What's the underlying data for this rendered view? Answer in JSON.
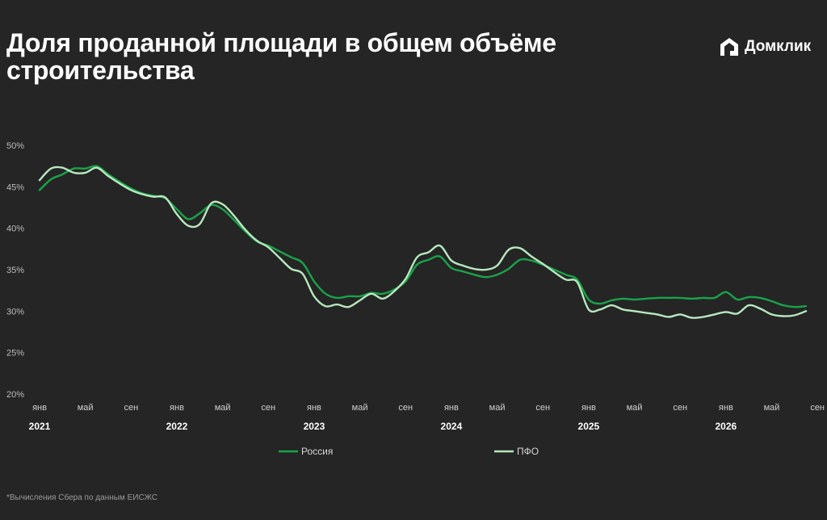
{
  "title": "Доля проданной площади в общем объёме строительства",
  "brand": {
    "name": "Домклик",
    "icon": "domclick-house-icon"
  },
  "footnote": "*Вычисления Сбера по данным ЕИСЖС",
  "colors": {
    "background": "#252525",
    "russia": "#1aa34a",
    "pfo": "#b8e8bf"
  },
  "chart_data": {
    "type": "line",
    "title": "Доля проданной площади в общем объёме строительства",
    "xlabel": "",
    "ylabel": "",
    "ylim": [
      20,
      50
    ],
    "yticks": [
      "50%",
      "45%",
      "40%",
      "35%",
      "30%",
      "25%",
      "20%"
    ],
    "xtick_labels": [
      "янв",
      "май",
      "сен",
      "янв",
      "май",
      "сен",
      "янв",
      "май",
      "сен",
      "янв",
      "май",
      "сен",
      "янв",
      "май",
      "сен",
      "янв",
      "май",
      "сен"
    ],
    "years": [
      "2021",
      "2022",
      "2023",
      "2024",
      "2025",
      "2026"
    ],
    "legend_position": "bottom",
    "grid": false,
    "x_unit": "months since Jan 2021",
    "series": [
      {
        "name": "Россия",
        "x": [
          0,
          1,
          2,
          3,
          4,
          5,
          6,
          7,
          8,
          9,
          10,
          11,
          12,
          13,
          14,
          15,
          16,
          17,
          18,
          19,
          20,
          21,
          22,
          23,
          24,
          25,
          26,
          27,
          28,
          29,
          30,
          31,
          32,
          33,
          34,
          35,
          36,
          37,
          38,
          39,
          40,
          41,
          42,
          43,
          44,
          45,
          46,
          47,
          48,
          49,
          50,
          51,
          52,
          53,
          54,
          55,
          56,
          57,
          58,
          59,
          60,
          61,
          62,
          63,
          64,
          65,
          66,
          67
        ],
        "values": [
          44.6,
          45.9,
          46.5,
          47.2,
          47.2,
          47.5,
          46.5,
          45.6,
          44.8,
          44.2,
          43.9,
          43.6,
          42.3,
          41.1,
          41.8,
          42.8,
          42.3,
          41.0,
          39.6,
          38.4,
          37.9,
          37.2,
          36.5,
          35.8,
          33.6,
          32.1,
          31.6,
          31.8,
          31.8,
          32.2,
          32.1,
          32.6,
          33.6,
          35.6,
          36.2,
          36.6,
          35.2,
          34.8,
          34.4,
          34.1,
          34.4,
          35.1,
          36.2,
          36.1,
          35.6,
          35.0,
          34.4,
          33.8,
          31.4,
          30.9,
          31.3,
          31.5,
          31.4,
          31.5,
          31.6,
          31.6,
          31.6,
          31.5,
          31.6,
          31.6,
          32.3,
          31.4,
          31.7,
          31.6,
          31.2,
          30.7,
          30.5,
          30.6
        ]
      },
      {
        "name": "ПФО",
        "x": [
          0,
          1,
          2,
          3,
          4,
          5,
          6,
          7,
          8,
          9,
          10,
          11,
          12,
          13,
          14,
          15,
          16,
          17,
          18,
          19,
          20,
          21,
          22,
          23,
          24,
          25,
          26,
          27,
          28,
          29,
          30,
          31,
          32,
          33,
          34,
          35,
          36,
          37,
          38,
          39,
          40,
          41,
          42,
          43,
          44,
          45,
          46,
          47,
          48,
          49,
          50,
          51,
          52,
          53,
          54,
          55,
          56,
          57,
          58,
          59,
          60,
          61,
          62,
          63,
          64,
          65,
          66,
          67
        ],
        "values": [
          45.8,
          47.2,
          47.3,
          46.7,
          46.7,
          47.3,
          46.3,
          45.4,
          44.6,
          44.1,
          43.8,
          43.7,
          41.7,
          40.3,
          40.5,
          43.0,
          42.9,
          41.5,
          39.8,
          38.5,
          37.7,
          36.4,
          35.1,
          34.5,
          31.8,
          30.6,
          30.8,
          30.5,
          31.3,
          32.1,
          31.5,
          32.4,
          33.9,
          36.5,
          37.1,
          37.9,
          36.1,
          35.5,
          35.1,
          35.0,
          35.5,
          37.4,
          37.6,
          36.6,
          35.7,
          34.7,
          33.8,
          33.5,
          30.2,
          30.2,
          30.7,
          30.2,
          30.0,
          29.8,
          29.6,
          29.3,
          29.6,
          29.2,
          29.3,
          29.6,
          29.9,
          29.7,
          30.7,
          30.3,
          29.6,
          29.4,
          29.5,
          30.0
        ]
      }
    ]
  }
}
